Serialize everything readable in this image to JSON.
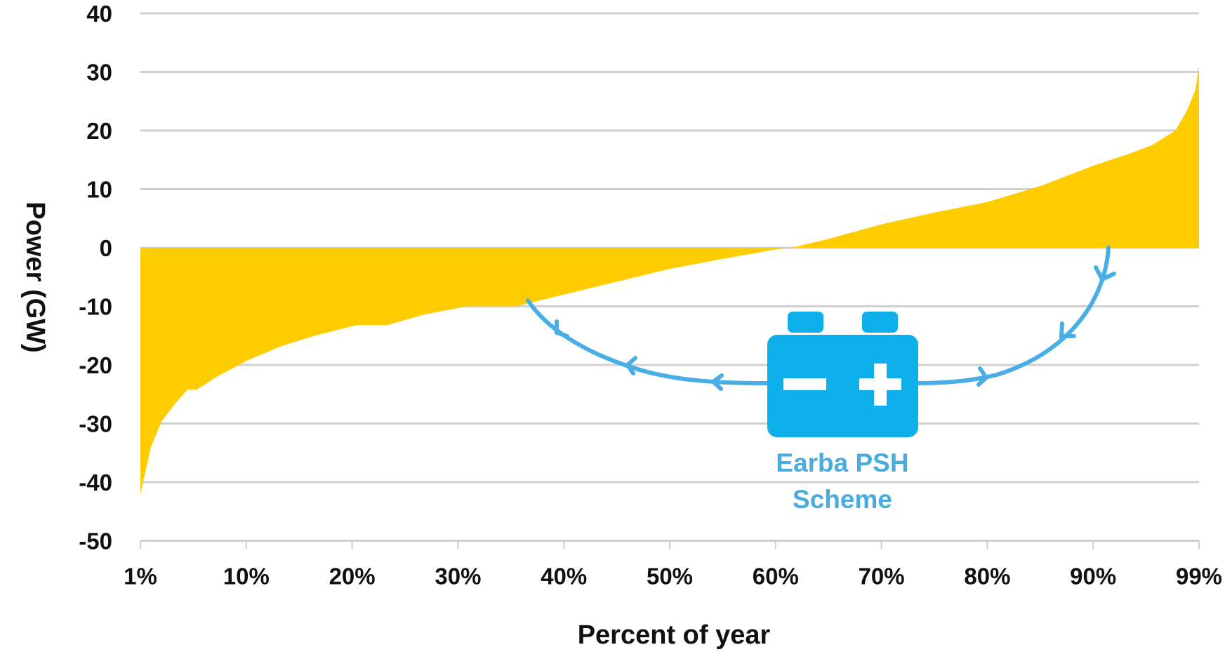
{
  "chart_data": {
    "type": "area",
    "title": "",
    "xlabel": "Percent of year",
    "ylabel": "Power (GW)",
    "ylim": [
      -50,
      40
    ],
    "yticks": [
      "40",
      "30",
      "20",
      "10",
      "0",
      "-10",
      "-20",
      "-30",
      "-40",
      "-50"
    ],
    "ytick_values": [
      40,
      30,
      20,
      10,
      0,
      -10,
      -20,
      -30,
      -40,
      -50
    ],
    "xticks": [
      "1%",
      "10%",
      "20%",
      "30%",
      "40%",
      "50%",
      "60%",
      "70%",
      "80%",
      "90%",
      "99%"
    ],
    "xtick_values": [
      1,
      10,
      20,
      30,
      40,
      50,
      60,
      70,
      80,
      90,
      99
    ],
    "grid": true,
    "series": [
      {
        "color": "#FFCC00",
        "x": [
          1,
          1.9,
          2.8,
          4,
          5,
          5.8,
          7.5,
          9.2,
          10,
          13.3,
          16.5,
          20.4,
          23.3,
          26.8,
          30.8,
          35.5,
          40,
          45,
          50,
          55,
          60,
          61.5,
          65,
          70,
          75,
          80,
          85,
          90,
          93,
          95,
          97,
          98,
          98.7,
          99
        ],
        "y": [
          -42,
          -34,
          -29.6,
          -26.5,
          -24.2,
          -24.2,
          -22,
          -20.2,
          -19.3,
          -16.8,
          -15,
          -13.2,
          -13.2,
          -11.4,
          -10,
          -10,
          -8,
          -5.8,
          -3.6,
          -1.9,
          -0.3,
          0,
          1.5,
          4,
          6,
          7.8,
          10.5,
          14,
          16,
          17.5,
          20,
          23.5,
          27,
          31
        ]
      }
    ],
    "annotation": {
      "label_line1": "Earba PSH",
      "label_line2": "Scheme",
      "icon": "battery-icon",
      "color": "#4AABDF",
      "icon_color": "#0DB0EA"
    }
  }
}
